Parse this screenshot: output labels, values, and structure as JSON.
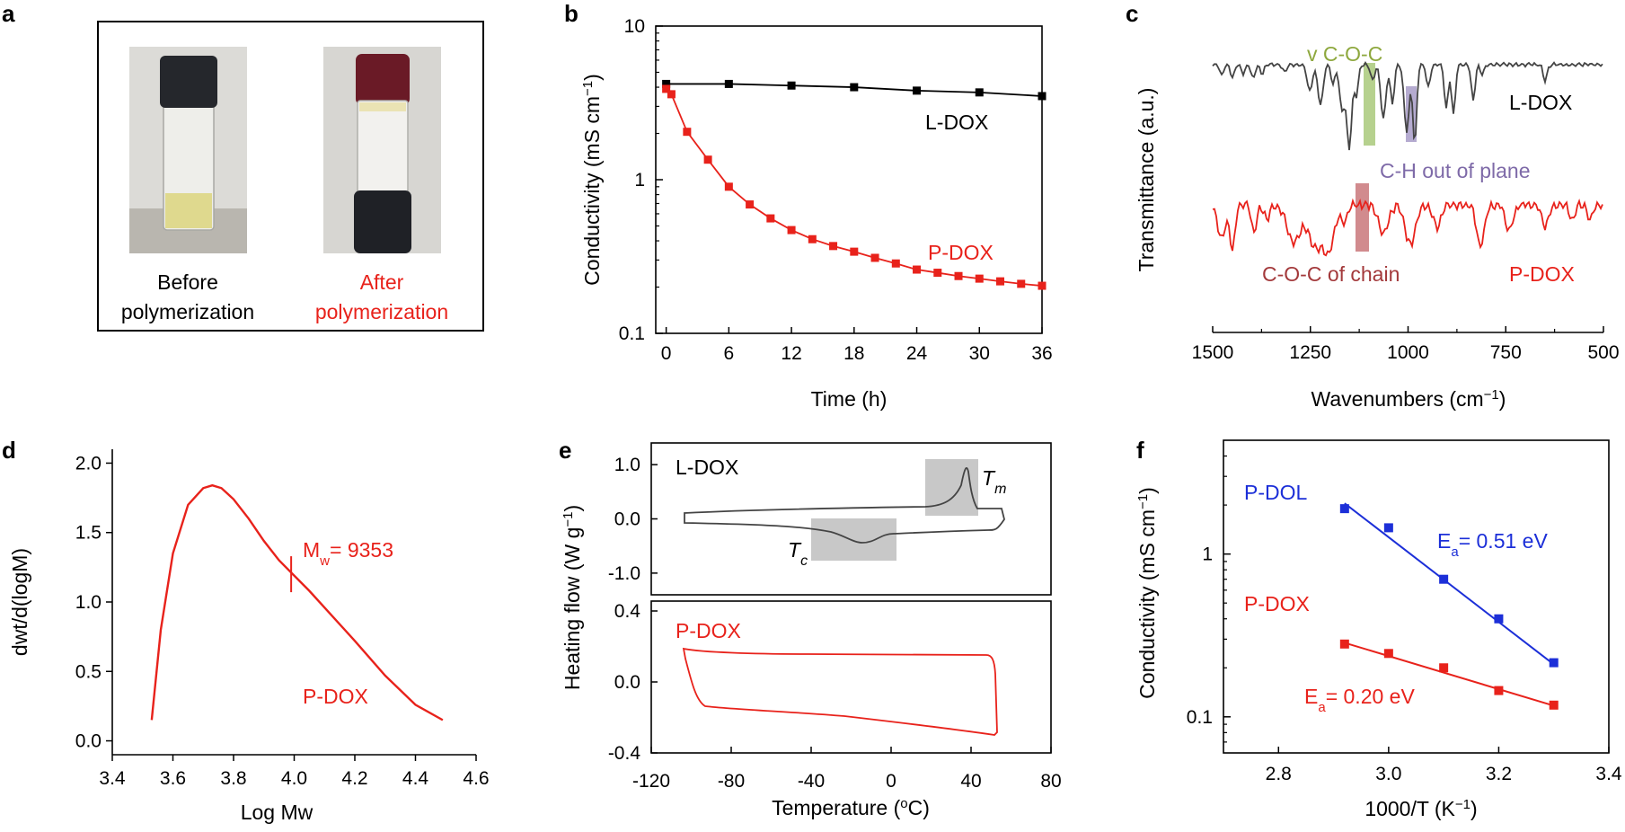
{
  "panels": {
    "a": {
      "letter": "a",
      "before_label": [
        "Before",
        "polymerization"
      ],
      "after_label": [
        "After",
        "polymerization"
      ],
      "before_color": "#000000",
      "after_color": "#e8221b"
    },
    "b": {
      "letter": "b"
    },
    "c": {
      "letter": "c"
    },
    "d": {
      "letter": "d"
    },
    "e": {
      "letter": "e"
    },
    "f": {
      "letter": "f"
    }
  },
  "colors": {
    "red": "#e8221b",
    "black": "#000000",
    "gray": "#444444",
    "blue": "#1c2fd8",
    "green_band": "#a9c97a",
    "purple_band": "#a89cc8",
    "red_band": "#c9777a",
    "tm_box": "#c8c8c8"
  },
  "chart_data": [
    {
      "panel": "b",
      "type": "line",
      "xlabel": "Time (h)",
      "ylabel": "Conductivity (mS cm",
      "ylabel_sup": "−1",
      "ylabel_end": ")",
      "xlim": [
        -1,
        36
      ],
      "ylim": [
        0.1,
        10
      ],
      "yscale": "log",
      "xticks": [
        0,
        6,
        12,
        18,
        24,
        30,
        36
      ],
      "yticks": [
        0.1,
        1,
        10
      ],
      "ytick_labels": [
        "0.1",
        "1",
        "10"
      ],
      "series": [
        {
          "name": "L-DOX",
          "color": "#000000",
          "x": [
            0,
            6,
            12,
            18,
            24,
            30,
            36
          ],
          "y": [
            4.2,
            4.2,
            4.1,
            4.0,
            3.8,
            3.7,
            3.5
          ]
        },
        {
          "name": "P-DOX",
          "color": "#e8221b",
          "x": [
            0,
            0.5,
            2,
            4,
            6,
            8,
            10,
            12,
            14,
            16,
            18,
            20,
            22,
            24,
            26,
            28,
            30,
            32,
            34,
            36
          ],
          "y": [
            3.9,
            3.6,
            2.05,
            1.35,
            0.9,
            0.69,
            0.56,
            0.47,
            0.41,
            0.37,
            0.34,
            0.31,
            0.285,
            0.26,
            0.248,
            0.236,
            0.227,
            0.218,
            0.21,
            0.204
          ]
        }
      ],
      "labels": {
        "ldox": "L-DOX",
        "pdox": "P-DOX"
      }
    },
    {
      "panel": "c",
      "type": "line",
      "xlabel": "Wavenumbers (cm",
      "xlabel_sup": "−1",
      "xlabel_end": ")",
      "ylabel": "Transmittance (a.u.)",
      "xlim": [
        1500,
        500
      ],
      "xticks": [
        1500,
        1250,
        1000,
        750,
        500
      ],
      "series": [
        {
          "name": "L-DOX",
          "color": "#444444"
        },
        {
          "name": "P-DOX",
          "color": "#e8221b"
        }
      ],
      "annotations": {
        "vcoc": "v C-O-C",
        "ch_oop": "C-H out of plane",
        "coc_chain": "C-O-C of chain",
        "ldox": "L-DOX",
        "pdox": "P-DOX"
      },
      "bands": [
        {
          "label": "v C-O-C",
          "center": 1090
        },
        {
          "label": "C-H out of plane",
          "center": 985
        },
        {
          "label": "C-O-C of chain",
          "center": 1120
        }
      ]
    },
    {
      "panel": "d",
      "type": "line",
      "xlabel": "Log Mw",
      "ylabel": "dwt/d(logM)",
      "xlim": [
        3.4,
        4.6
      ],
      "ylim": [
        -0.1,
        2.1
      ],
      "xticks": [
        3.4,
        3.6,
        3.8,
        4.0,
        4.2,
        4.4,
        4.6
      ],
      "xtick_labels": [
        "3.4",
        "3.6",
        "3.8",
        "4.0",
        "4.2",
        "4.4",
        "4.6"
      ],
      "yticks": [
        0.0,
        0.5,
        1.0,
        1.5,
        2.0
      ],
      "ytick_labels": [
        "0.0",
        "0.5",
        "1.0",
        "1.5",
        "2.0"
      ],
      "series": [
        {
          "name": "P-DOX",
          "color": "#e8221b",
          "x": [
            3.53,
            3.56,
            3.6,
            3.65,
            3.7,
            3.73,
            3.76,
            3.8,
            3.85,
            3.9,
            3.95,
            4.0,
            4.05,
            4.1,
            4.2,
            4.3,
            4.4,
            4.49
          ],
          "y": [
            0.15,
            0.8,
            1.35,
            1.7,
            1.82,
            1.84,
            1.82,
            1.74,
            1.6,
            1.44,
            1.3,
            1.19,
            1.08,
            0.96,
            0.72,
            0.47,
            0.26,
            0.15
          ]
        }
      ],
      "mw_marker_x": 3.99,
      "mw_marker_y": 1.2,
      "mw_label": "M",
      "mw_sub": "w",
      "mw_value": "= 9353",
      "series_label": "P-DOX"
    },
    {
      "panel": "e",
      "type": "line",
      "xlabel": "Temperature (",
      "xlabel_sup": "o",
      "xlabel_end": "C)",
      "ylabel": "Heating flow (W g",
      "ylabel_sup": "−1",
      "ylabel_end": ")",
      "xlim": [
        -120,
        80
      ],
      "xticks": [
        -120,
        -80,
        -40,
        0,
        40,
        80
      ],
      "top": {
        "ylim": [
          -1.4,
          1.4
        ],
        "yticks": [
          1.0,
          0.0,
          -1.0
        ],
        "ytick_labels": [
          "1.0",
          "0.0",
          "-1.0"
        ],
        "label": "L-DOX",
        "tm": "T",
        "tm_sub": "m",
        "tc": "T",
        "tc_sub": "c"
      },
      "bottom": {
        "ylim": [
          -0.4,
          0.4
        ],
        "yticks": [
          0.4,
          0.0,
          -0.4
        ],
        "ytick_labels": [
          "0.4",
          "0.0",
          "-0.4"
        ],
        "label": "P-DOX"
      }
    },
    {
      "panel": "f",
      "type": "scatter",
      "xlabel": "1000/T (K",
      "xlabel_sup": "−1",
      "xlabel_end": ")",
      "ylabel": "Conductivity (mS cm",
      "ylabel_sup": "−1",
      "ylabel_end": ")",
      "xlim": [
        2.7,
        3.4
      ],
      "ylim": [
        0.06,
        5
      ],
      "yscale": "log",
      "xticks": [
        2.8,
        3.0,
        3.2,
        3.4
      ],
      "xtick_labels": [
        "2.8",
        "3.0",
        "3.2",
        "3.4"
      ],
      "yticks": [
        0.1,
        1
      ],
      "ytick_labels": [
        "0.1",
        "1"
      ],
      "series": [
        {
          "name": "P-DOL",
          "color": "#1c2fd8",
          "x": [
            2.92,
            3.0,
            3.1,
            3.2,
            3.3
          ],
          "y": [
            1.9,
            1.45,
            0.7,
            0.4,
            0.215
          ]
        },
        {
          "name": "P-DOX",
          "color": "#e8221b",
          "x": [
            2.92,
            3.0,
            3.1,
            3.2,
            3.3
          ],
          "y": [
            0.28,
            0.245,
            0.2,
            0.145,
            0.118
          ]
        }
      ],
      "fits": {
        "pdol": {
          "x": [
            2.92,
            3.3
          ],
          "y": [
            2.05,
            0.21
          ]
        },
        "pdox": {
          "x": [
            2.92,
            3.3
          ],
          "y": [
            0.285,
            0.117
          ]
        }
      },
      "ea_pdol": {
        "pre": "E",
        "sub": "a",
        "post": "= 0.51 eV"
      },
      "ea_pdox": {
        "pre": "E",
        "sub": "a",
        "post": "= 0.20 eV"
      }
    }
  ]
}
